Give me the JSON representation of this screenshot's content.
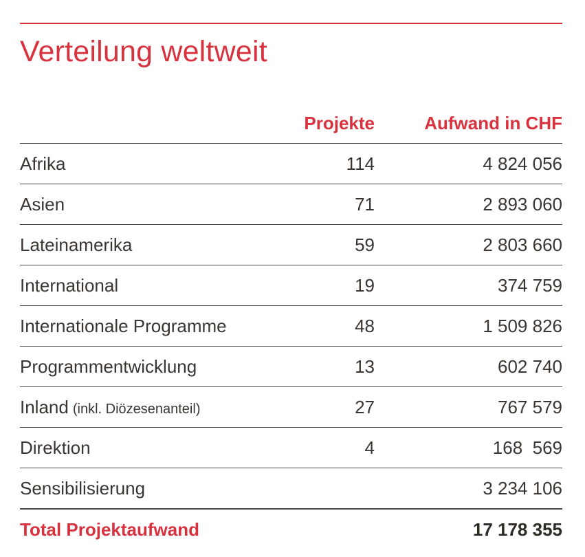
{
  "title": "Verteilung weltweit",
  "columns": {
    "projects": "Projekte",
    "cost": "Aufwand in CHF"
  },
  "rows": [
    {
      "region": "Afrika",
      "note": "",
      "projects": "114",
      "cost": "4 824 056"
    },
    {
      "region": "Asien",
      "note": "",
      "projects": "71",
      "cost": "2 893 060"
    },
    {
      "region": "Lateinamerika",
      "note": "",
      "projects": "59",
      "cost": "2 803 660"
    },
    {
      "region": "International",
      "note": "",
      "projects": "19",
      "cost": "374 759"
    },
    {
      "region": "Internationale Programme",
      "note": "",
      "projects": "48",
      "cost": "1 509 826"
    },
    {
      "region": "Programmentwicklung",
      "note": "",
      "projects": "13",
      "cost": "602 740"
    },
    {
      "region": "Inland",
      "note": "(inkl. Diözesenanteil)",
      "projects": "27",
      "cost": "767 579"
    },
    {
      "region": "Direktion",
      "note": "",
      "projects": "4",
      "cost": "168  569"
    },
    {
      "region": "Sensibilisierung",
      "note": "",
      "projects": "",
      "cost": "3 234 106"
    }
  ],
  "total": {
    "label": "Total Projektaufwand",
    "cost": "17 178 355"
  },
  "colors": {
    "accent": "#d9323f",
    "text": "#3a3530",
    "rule": "#4a4540"
  }
}
